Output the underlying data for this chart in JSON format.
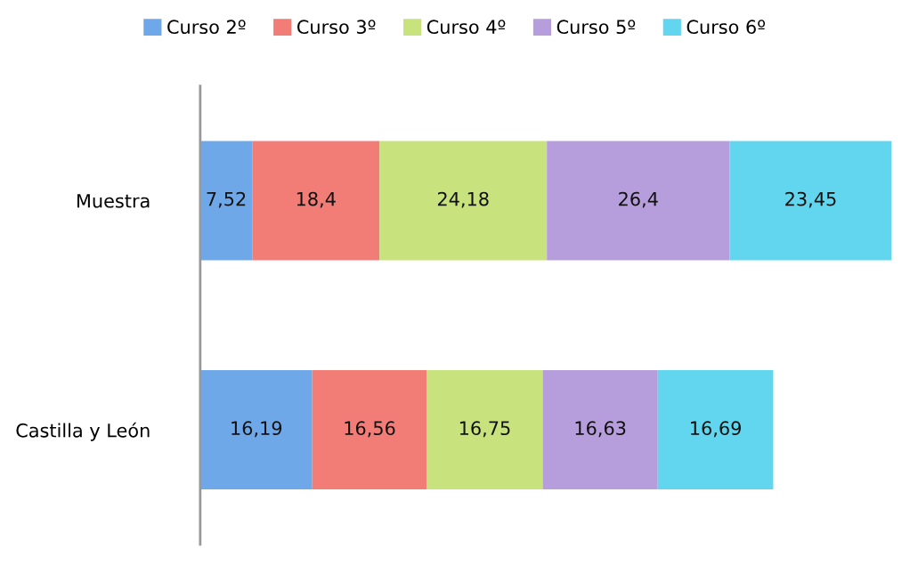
{
  "chart_data": {
    "type": "bar",
    "orientation": "horizontal",
    "stacked": true,
    "legend": "top",
    "categories": [
      "Muestra",
      "Castilla y León"
    ],
    "series": [
      {
        "name": "Curso 2º",
        "color": "#6fa8e8",
        "values": [
          7.52,
          16.19
        ],
        "value_labels": [
          "7,52",
          "16,19"
        ]
      },
      {
        "name": "Curso 3º",
        "color": "#f27c76",
        "values": [
          18.4,
          16.56
        ],
        "value_labels": [
          "18,4",
          "16,56"
        ]
      },
      {
        "name": "Curso 4º",
        "color": "#c8e27e",
        "values": [
          24.18,
          16.75
        ],
        "value_labels": [
          "24,18",
          "16,75"
        ]
      },
      {
        "name": "Curso 5º",
        "color": "#b69ddb",
        "values": [
          26.4,
          16.63
        ],
        "value_labels": [
          "26,4",
          "16,63"
        ]
      },
      {
        "name": "Curso 6º",
        "color": "#62d6ee",
        "values": [
          23.45,
          16.69
        ],
        "value_labels": [
          "23,45",
          "16,69"
        ]
      }
    ]
  }
}
